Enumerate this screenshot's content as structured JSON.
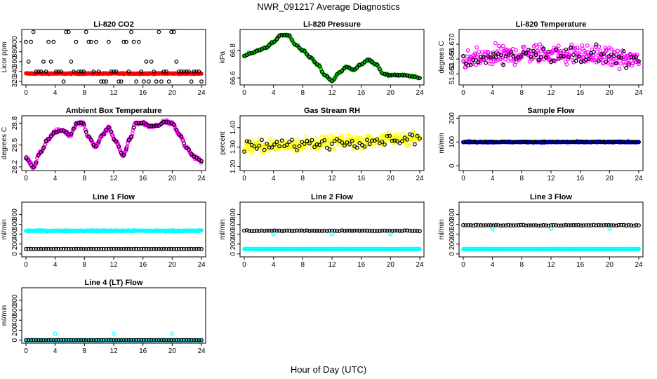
{
  "figure": {
    "title": "NWR_091217  Average Diagnostics",
    "xlabel": "Hour of Day (UTC)"
  },
  "chart_data": [
    {
      "id": "co2",
      "type": "scatter",
      "title": "Li-820 CO2",
      "ylabel": "Licor ppm",
      "xlim": [
        0,
        24
      ],
      "ylim": [
        313,
        425
      ],
      "yticks": [
        "320",
        "340",
        "360",
        "380",
        "400"
      ],
      "ytick_values": [
        320,
        340,
        360,
        380,
        400
      ],
      "xticks": [
        "0",
        "4",
        "8",
        "12",
        "16",
        "20",
        "24"
      ],
      "series": [
        {
          "name": "red",
          "color": "#ff0000"
        },
        {
          "name": "black",
          "color": "#000000"
        }
      ]
    },
    {
      "id": "pressure",
      "type": "scatter",
      "title": "Li-820 Pressure",
      "ylabel": "kPa",
      "xlim": [
        0,
        24
      ],
      "ylim": [
        66.55,
        66.95
      ],
      "yticks": [
        "66.6",
        "66.8"
      ],
      "ytick_values": [
        66.6,
        66.8
      ],
      "xticks": [
        "0",
        "4",
        "8",
        "12",
        "16",
        "20",
        "24"
      ],
      "series": [
        {
          "name": "green",
          "color": "#00c000"
        },
        {
          "name": "black",
          "color": "#000000"
        }
      ]
    },
    {
      "id": "temp",
      "type": "scatter",
      "title": "Li-820 Temperature",
      "ylabel": "degrees C",
      "xlim": [
        0,
        24
      ],
      "ylim": [
        51.659,
        51.674
      ],
      "yticks": [
        "51.662",
        "51.666",
        "51.670"
      ],
      "ytick_values": [
        51.662,
        51.666,
        51.67
      ],
      "xticks": [
        "0",
        "4",
        "8",
        "12",
        "16",
        "20",
        "24"
      ],
      "series": [
        {
          "name": "magenta",
          "color": "#ff00ff"
        },
        {
          "name": "black",
          "color": "#000000"
        }
      ]
    },
    {
      "id": "boxtemp",
      "type": "scatter",
      "title": "Ambient Box Temperature",
      "ylabel": "degrees C",
      "xlim": [
        0,
        24
      ],
      "ylim": [
        28.15,
        28.9
      ],
      "yticks": [
        "28.2",
        "28.5",
        "28.8"
      ],
      "ytick_values": [
        28.2,
        28.5,
        28.8
      ],
      "xticks": [
        "0",
        "4",
        "8",
        "12",
        "16",
        "20",
        "24"
      ],
      "series": [
        {
          "name": "magenta",
          "color": "#ff00ff"
        },
        {
          "name": "black",
          "color": "#000000"
        }
      ]
    },
    {
      "id": "rh",
      "type": "scatter",
      "title": "Gas Stream RH",
      "ylabel": "percent",
      "xlim": [
        0,
        24
      ],
      "ylim": [
        1.18,
        1.46
      ],
      "yticks": [
        "1.20",
        "1.30",
        "1.40"
      ],
      "ytick_values": [
        1.2,
        1.3,
        1.4
      ],
      "xticks": [
        "0",
        "4",
        "8",
        "12",
        "16",
        "20",
        "24"
      ],
      "series": [
        {
          "name": "yellow",
          "color": "#ffff00"
        },
        {
          "name": "black",
          "color": "#000000"
        }
      ]
    },
    {
      "id": "sample",
      "type": "scatter",
      "title": "Sample Flow",
      "ylabel": "ml/min",
      "xlim": [
        0,
        24
      ],
      "ylim": [
        -20,
        210
      ],
      "yticks": [
        "0",
        "100",
        "200"
      ],
      "ytick_values": [
        0,
        100,
        200
      ],
      "xticks": [
        "0",
        "4",
        "8",
        "12",
        "16",
        "20",
        "24"
      ],
      "series": [
        {
          "name": "blue",
          "color": "#0000ff",
          "value": 100
        },
        {
          "name": "black",
          "color": "#000000",
          "value": 100
        }
      ]
    },
    {
      "id": "line1",
      "type": "scatter",
      "title": "Line 1 Flow",
      "ylabel": "ml/min",
      "xlim": [
        0,
        24
      ],
      "ylim": [
        -60,
        1050
      ],
      "yticks": [
        "0",
        "200",
        "400",
        "600",
        "800"
      ],
      "ytick_values": [
        0,
        200,
        400,
        600,
        800
      ],
      "xticks": [
        "0",
        "4",
        "8",
        "12",
        "16",
        "20",
        "24"
      ],
      "series": [
        {
          "name": "cyan",
          "color": "#00ffff",
          "value": 470
        },
        {
          "name": "black",
          "color": "#000000",
          "value": 100
        }
      ]
    },
    {
      "id": "line2",
      "type": "scatter",
      "title": "Line 2 Flow",
      "ylabel": "ml/min",
      "xlim": [
        0,
        24
      ],
      "ylim": [
        -60,
        1050
      ],
      "yticks": [
        "0",
        "200",
        "400",
        "600",
        "800"
      ],
      "ytick_values": [
        0,
        200,
        400,
        600,
        800
      ],
      "xticks": [
        "0",
        "4",
        "8",
        "12",
        "16",
        "20",
        "24"
      ],
      "series": [
        {
          "name": "cyan",
          "color": "#00ffff",
          "value": 100
        },
        {
          "name": "black",
          "color": "#000000",
          "value": 470
        }
      ]
    },
    {
      "id": "line3",
      "type": "scatter",
      "title": "Line 3 Flow",
      "ylabel": "ml/min",
      "xlim": [
        0,
        24
      ],
      "ylim": [
        -60,
        1050
      ],
      "yticks": [
        "0",
        "200",
        "400",
        "600",
        "800"
      ],
      "ytick_values": [
        0,
        200,
        400,
        600,
        800
      ],
      "xticks": [
        "0",
        "4",
        "8",
        "12",
        "16",
        "20",
        "24"
      ],
      "series": [
        {
          "name": "cyan",
          "color": "#00ffff",
          "value": 100
        },
        {
          "name": "black",
          "color": "#000000",
          "value": 580
        }
      ]
    },
    {
      "id": "line4",
      "type": "scatter",
      "title": "Line 4 (LT) Flow",
      "ylabel": "ml/min",
      "xlim": [
        0,
        24
      ],
      "ylim": [
        -60,
        1050
      ],
      "yticks": [
        "0",
        "200",
        "400",
        "600",
        "800"
      ],
      "ytick_values": [
        0,
        200,
        400,
        600,
        800
      ],
      "xticks": [
        "0",
        "4",
        "8",
        "12",
        "16",
        "20",
        "24"
      ],
      "series": [
        {
          "name": "cyan",
          "color": "#00ffff",
          "value": 0
        },
        {
          "name": "black",
          "color": "#000000",
          "value": 0
        }
      ]
    }
  ]
}
